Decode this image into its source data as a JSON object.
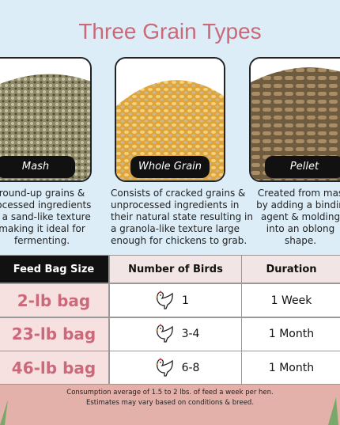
{
  "title": "Three Grain Types",
  "grains": [
    {
      "name": "Mash",
      "description": [
        "round-up grains &",
        "rocessed ingredients",
        "n a sand-like texture",
        "making it ideal for",
        "fermenting."
      ]
    },
    {
      "name": "Whole Grain",
      "description": [
        "Consists of cracked grains &",
        "unprocessed ingredients in",
        "their natural state resulting in",
        "a granola-like texture large",
        "enough for chickens to grab."
      ]
    },
    {
      "name": "Pellet",
      "description": [
        "Created from mas",
        "by adding a bindin",
        "agent & molding",
        "into an oblong",
        "shape."
      ]
    }
  ],
  "table": {
    "header": [
      "Feed Bag Size",
      "Number of Birds",
      "Duration"
    ],
    "rows": [
      [
        "2-lb bag",
        "1",
        "1 Week"
      ],
      [
        "23-lb bag",
        "3-4",
        "1 Month"
      ],
      [
        "46-lb bag",
        "6-8",
        "1 Month"
      ]
    ]
  },
  "footnote": [
    "Consumption average of 1.5 to 2 lbs. of feed a week per hen.",
    "Estimates may vary based on conditions & breed."
  ]
}
